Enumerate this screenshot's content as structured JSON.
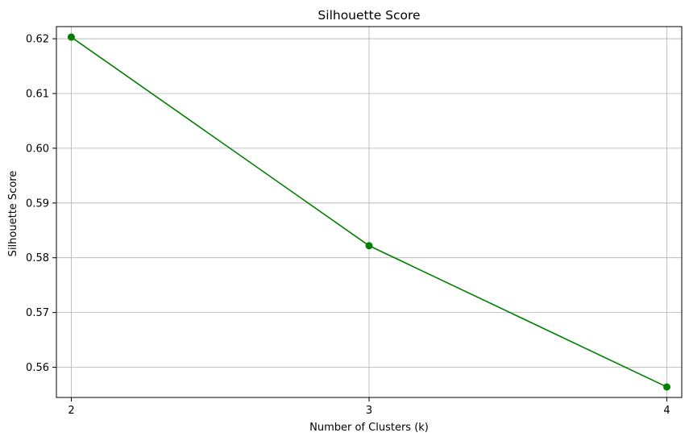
{
  "chart_data": {
    "type": "line",
    "title": "Silhouette Score",
    "xlabel": "Number of Clusters (k)",
    "ylabel": "Silhouette Score",
    "x": [
      2,
      3,
      4
    ],
    "series": [
      {
        "values": [
          0.6203,
          0.5822,
          0.5564
        ]
      }
    ],
    "xticks": [
      "2",
      "3",
      "4"
    ],
    "yticks": [
      "0.56",
      "0.57",
      "0.58",
      "0.59",
      "0.60",
      "0.61",
      "0.62"
    ],
    "xlim": [
      1.95,
      4.05
    ],
    "ylim": [
      0.55448,
      0.62222
    ],
    "grid": true,
    "marker": "circle",
    "colors": {
      "line": "#008000",
      "grid": "#b0b0b0",
      "axis": "#000000"
    }
  }
}
